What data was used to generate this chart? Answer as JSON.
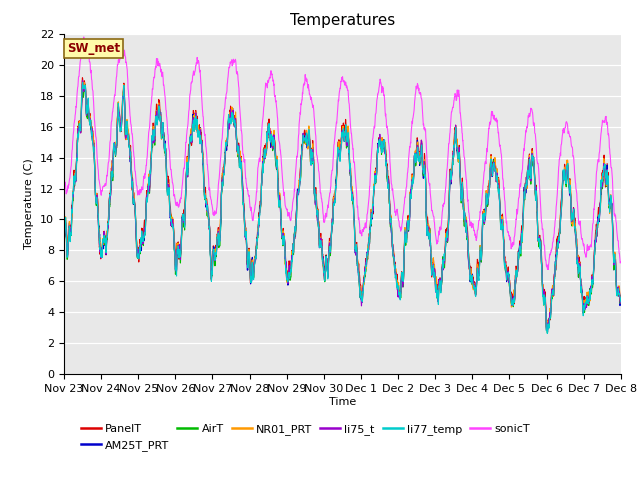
{
  "title": "Temperatures",
  "xlabel": "Time",
  "ylabel": "Temperature (C)",
  "ylim": [
    0,
    22
  ],
  "annotation_text": "SW_met",
  "series_names": [
    "PanelT",
    "AM25T_PRT",
    "AirT",
    "NR01_PRT",
    "li75_t",
    "li77_temp",
    "sonicT"
  ],
  "series_colors": [
    "#dd0000",
    "#0000cc",
    "#00bb00",
    "#ff9900",
    "#9900cc",
    "#00cccc",
    "#ff44ff"
  ],
  "background_color": "#e8e8e8",
  "n_points": 2000,
  "x_tick_labels": [
    "Nov 23",
    "Nov 24",
    "Nov 25",
    "Nov 26",
    "Nov 27",
    "Nov 28",
    "Nov 29",
    "Nov 30",
    "Dec 1",
    "Dec 2",
    "Dec 3",
    "Dec 4",
    "Dec 5",
    "Dec 6",
    "Dec 7",
    "Dec 8"
  ],
  "title_fontsize": 11,
  "axis_fontsize": 8,
  "legend_fontsize": 8,
  "linewidth": 0.8
}
